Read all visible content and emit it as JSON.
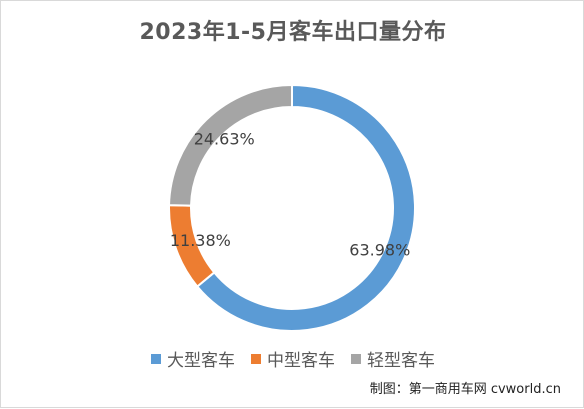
{
  "chart_data": {
    "type": "pie",
    "title": "2023年1-5月客车出口量分布",
    "categories": [
      "大型客车",
      "中型客车",
      "轻型客车"
    ],
    "values": [
      63.98,
      11.38,
      24.63
    ],
    "labels": [
      "63.98%",
      "11.38%",
      "24.63%"
    ],
    "colors": [
      "#5b9bd5",
      "#ed7d31",
      "#a5a5a5"
    ],
    "legend_position": "bottom"
  },
  "credit": "制图：第一商用车网 cvworld.cn"
}
